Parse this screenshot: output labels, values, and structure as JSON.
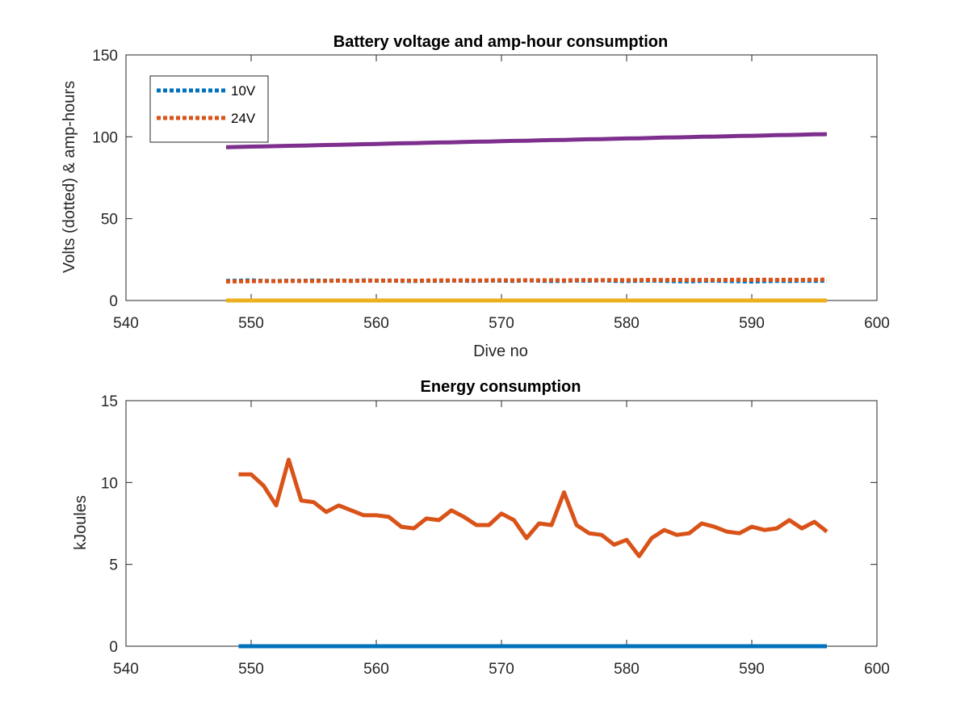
{
  "chart_data": [
    {
      "type": "line",
      "title": "Battery voltage and amp-hour consumption",
      "xlabel": "Dive no",
      "ylabel": "Volts (dotted) & amp-hours",
      "xlim": [
        540,
        600
      ],
      "ylim": [
        0,
        150
      ],
      "xticks": [
        540,
        550,
        560,
        570,
        580,
        590,
        600
      ],
      "yticks": [
        0,
        50,
        100,
        150
      ],
      "grid": false,
      "legend_position": "top-left",
      "x": [
        548,
        549,
        550,
        551,
        552,
        553,
        554,
        555,
        556,
        557,
        558,
        559,
        560,
        561,
        562,
        563,
        564,
        565,
        566,
        567,
        568,
        569,
        570,
        571,
        572,
        573,
        574,
        575,
        576,
        577,
        578,
        579,
        580,
        581,
        582,
        583,
        584,
        585,
        586,
        587,
        588,
        589,
        590,
        591,
        592,
        593,
        594,
        595,
        596
      ],
      "series": [
        {
          "name": "10V",
          "style": "dotted",
          "color": "#0072BD",
          "values": [
            12.0,
            12.1,
            12.3,
            12.0,
            11.9,
            12.1,
            12.0,
            12.2,
            12.1,
            12.2,
            12.0,
            12.3,
            12.1,
            12.2,
            12.0,
            11.9,
            12.1,
            12.0,
            12.2,
            12.1,
            12.0,
            12.2,
            12.1,
            12.0,
            12.3,
            12.1,
            11.9,
            12.0,
            12.2,
            12.1,
            12.3,
            12.0,
            11.9,
            12.1,
            12.2,
            12.0,
            11.8,
            11.7,
            12.0,
            12.1,
            11.9,
            11.8,
            11.6,
            11.8,
            12.0,
            11.9,
            12.1,
            12.0,
            12.1
          ]
        },
        {
          "name": "24V",
          "style": "dotted",
          "color": "#D95319",
          "values": [
            11.6,
            11.7,
            11.8,
            11.9,
            11.8,
            11.9,
            12.0,
            11.9,
            12.0,
            12.1,
            12.0,
            12.1,
            12.2,
            12.1,
            12.2,
            12.1,
            12.2,
            12.3,
            12.2,
            12.3,
            12.2,
            12.3,
            12.4,
            12.3,
            12.4,
            12.3,
            12.4,
            12.3,
            12.4,
            12.5,
            12.4,
            12.5,
            12.4,
            12.5,
            12.6,
            12.5,
            12.6,
            12.5,
            12.6,
            12.5,
            12.6,
            12.7,
            12.6,
            12.7,
            12.6,
            12.7,
            12.6,
            12.7,
            12.8
          ]
        },
        {
          "style": "solid",
          "color": "#7E2F8E",
          "values": [
            93.6,
            93.8,
            94.0,
            94.1,
            94.3,
            94.5,
            94.6,
            94.8,
            95.0,
            95.1,
            95.3,
            95.5,
            95.6,
            95.8,
            96.0,
            96.1,
            96.3,
            96.5,
            96.6,
            96.8,
            97.0,
            97.1,
            97.3,
            97.5,
            97.6,
            97.8,
            98.0,
            98.1,
            98.3,
            98.5,
            98.6,
            98.8,
            99.0,
            99.1,
            99.3,
            99.5,
            99.6,
            99.8,
            100.0,
            100.1,
            100.3,
            100.5,
            100.6,
            100.8,
            101.0,
            101.1,
            101.3,
            101.5,
            101.6
          ]
        },
        {
          "style": "solid",
          "color": "#EDB120",
          "values": [
            0,
            0,
            0,
            0,
            0,
            0,
            0,
            0,
            0,
            0,
            0,
            0,
            0,
            0,
            0,
            0,
            0,
            0,
            0,
            0,
            0,
            0,
            0,
            0,
            0,
            0,
            0,
            0,
            0,
            0,
            0,
            0,
            0,
            0,
            0,
            0,
            0,
            0,
            0,
            0,
            0,
            0,
            0,
            0,
            0,
            0,
            0,
            0,
            0
          ]
        }
      ]
    },
    {
      "type": "line",
      "title": "Energy consumption",
      "xlabel": "",
      "ylabel": "kJoules",
      "xlim": [
        540,
        600
      ],
      "ylim": [
        0,
        15
      ],
      "xticks": [
        540,
        550,
        560,
        570,
        580,
        590,
        600
      ],
      "yticks": [
        0,
        5,
        10,
        15
      ],
      "grid": false,
      "x": [
        549,
        550,
        551,
        552,
        553,
        554,
        555,
        556,
        557,
        558,
        559,
        560,
        561,
        562,
        563,
        564,
        565,
        566,
        567,
        568,
        569,
        570,
        571,
        572,
        573,
        574,
        575,
        576,
        577,
        578,
        579,
        580,
        581,
        582,
        583,
        584,
        585,
        586,
        587,
        588,
        589,
        590,
        591,
        592,
        593,
        594,
        595,
        596
      ],
      "series": [
        {
          "style": "solid",
          "color": "#D95319",
          "values": [
            10.5,
            10.5,
            9.8,
            8.6,
            11.4,
            8.9,
            8.8,
            8.2,
            8.6,
            8.3,
            8.0,
            8.0,
            7.9,
            7.3,
            7.2,
            7.8,
            7.7,
            8.3,
            7.9,
            7.4,
            7.4,
            8.1,
            7.7,
            6.6,
            7.5,
            7.4,
            9.4,
            7.4,
            6.9,
            6.8,
            6.2,
            6.5,
            5.5,
            6.6,
            7.1,
            6.8,
            6.9,
            7.5,
            7.3,
            7.0,
            6.9,
            7.3,
            7.1,
            7.2,
            7.7,
            7.2,
            7.6,
            7.0
          ]
        },
        {
          "style": "solid",
          "color": "#0072BD",
          "values": [
            0,
            0,
            0,
            0,
            0,
            0,
            0,
            0,
            0,
            0,
            0,
            0,
            0,
            0,
            0,
            0,
            0,
            0,
            0,
            0,
            0,
            0,
            0,
            0,
            0,
            0,
            0,
            0,
            0,
            0,
            0,
            0,
            0,
            0,
            0,
            0,
            0,
            0,
            0,
            0,
            0,
            0,
            0,
            0,
            0,
            0,
            0,
            0
          ]
        }
      ]
    }
  ]
}
